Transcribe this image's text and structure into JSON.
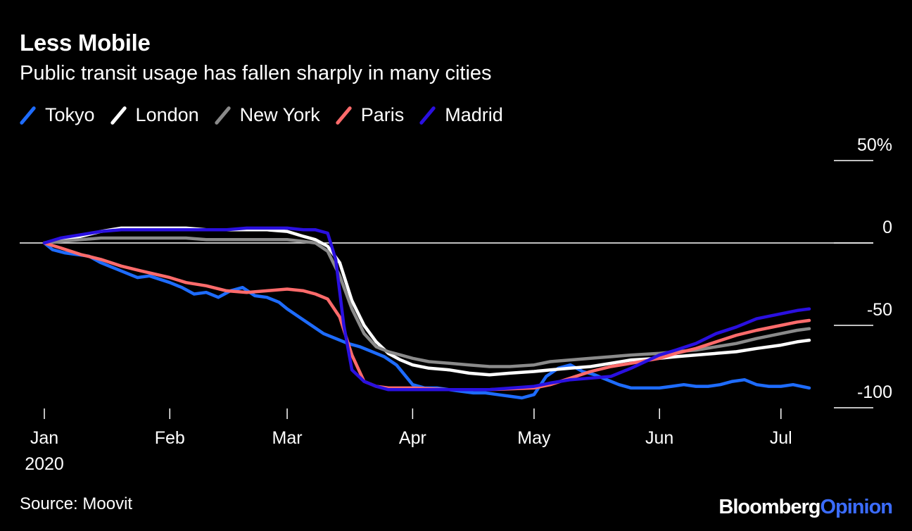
{
  "title": "Less Mobile",
  "subtitle": "Public transit usage has fallen sharply in many cities",
  "source": "Source: Moovit",
  "brand": {
    "bloomberg": "Bloomberg",
    "opinion": "Opinion"
  },
  "colors": {
    "background": "#000000",
    "Tokyo": "#1e6cff",
    "London": "#ffffff",
    "New York": "#8a8a8a",
    "Paris": "#ff6b6b",
    "Madrid": "#2a10e0"
  },
  "chart_data": {
    "type": "line",
    "title": "Less Mobile",
    "subtitle": "Public transit usage has fallen sharply in many cities",
    "ylim": [
      -100,
      50
    ],
    "yticks": [
      50,
      0,
      -50,
      -100
    ],
    "ytick_labels": [
      "50%",
      "0",
      "-50",
      "-100"
    ],
    "xlim": [
      "2020-01-01",
      "2020-07-08"
    ],
    "xticks": [
      {
        "date": "2020-01-01",
        "label": "Jan",
        "sublabel": "2020"
      },
      {
        "date": "2020-02-01",
        "label": "Feb"
      },
      {
        "date": "2020-03-01",
        "label": "Mar"
      },
      {
        "date": "2020-04-01",
        "label": "Apr"
      },
      {
        "date": "2020-05-01",
        "label": "May"
      },
      {
        "date": "2020-06-01",
        "label": "Jun"
      },
      {
        "date": "2020-07-01",
        "label": "Jul"
      }
    ],
    "legend_position": "top-left",
    "grid": false,
    "series": [
      {
        "name": "Tokyo",
        "color": "#1e6cff",
        "points": [
          [
            "2020-01-01",
            0
          ],
          [
            "2020-01-03",
            -4
          ],
          [
            "2020-01-06",
            -6
          ],
          [
            "2020-01-09",
            -7
          ],
          [
            "2020-01-12",
            -8
          ],
          [
            "2020-01-15",
            -12
          ],
          [
            "2020-01-18",
            -15
          ],
          [
            "2020-01-21",
            -18
          ],
          [
            "2020-01-24",
            -21
          ],
          [
            "2020-01-27",
            -20
          ],
          [
            "2020-02-01",
            -24
          ],
          [
            "2020-02-04",
            -27
          ],
          [
            "2020-02-07",
            -31
          ],
          [
            "2020-02-10",
            -30
          ],
          [
            "2020-02-13",
            -33
          ],
          [
            "2020-02-16",
            -29
          ],
          [
            "2020-02-19",
            -27
          ],
          [
            "2020-02-22",
            -32
          ],
          [
            "2020-02-25",
            -33
          ],
          [
            "2020-02-28",
            -36
          ],
          [
            "2020-03-01",
            -40
          ],
          [
            "2020-03-04",
            -45
          ],
          [
            "2020-03-07",
            -50
          ],
          [
            "2020-03-10",
            -55
          ],
          [
            "2020-03-13",
            -58
          ],
          [
            "2020-03-16",
            -61
          ],
          [
            "2020-03-19",
            -63
          ],
          [
            "2020-03-22",
            -66
          ],
          [
            "2020-03-25",
            -69
          ],
          [
            "2020-03-28",
            -74
          ],
          [
            "2020-04-01",
            -86
          ],
          [
            "2020-04-04",
            -88
          ],
          [
            "2020-04-07",
            -88
          ],
          [
            "2020-04-10",
            -89
          ],
          [
            "2020-04-13",
            -90
          ],
          [
            "2020-04-16",
            -91
          ],
          [
            "2020-04-19",
            -91
          ],
          [
            "2020-04-22",
            -92
          ],
          [
            "2020-04-25",
            -93
          ],
          [
            "2020-04-28",
            -94
          ],
          [
            "2020-05-01",
            -92
          ],
          [
            "2020-05-04",
            -81
          ],
          [
            "2020-05-07",
            -76
          ],
          [
            "2020-05-10",
            -74
          ],
          [
            "2020-05-13",
            -78
          ],
          [
            "2020-05-16",
            -80
          ],
          [
            "2020-05-19",
            -83
          ],
          [
            "2020-05-22",
            -86
          ],
          [
            "2020-05-25",
            -88
          ],
          [
            "2020-05-28",
            -88
          ],
          [
            "2020-06-01",
            -88
          ],
          [
            "2020-06-04",
            -87
          ],
          [
            "2020-06-07",
            -86
          ],
          [
            "2020-06-10",
            -87
          ],
          [
            "2020-06-13",
            -87
          ],
          [
            "2020-06-16",
            -86
          ],
          [
            "2020-06-19",
            -84
          ],
          [
            "2020-06-22",
            -83
          ],
          [
            "2020-06-25",
            -86
          ],
          [
            "2020-06-28",
            -87
          ],
          [
            "2020-07-01",
            -87
          ],
          [
            "2020-07-04",
            -86
          ],
          [
            "2020-07-08",
            -88
          ]
        ]
      },
      {
        "name": "London",
        "color": "#ffffff",
        "points": [
          [
            "2020-01-01",
            0
          ],
          [
            "2020-01-05",
            2
          ],
          [
            "2020-01-10",
            4
          ],
          [
            "2020-01-15",
            7
          ],
          [
            "2020-01-20",
            9
          ],
          [
            "2020-01-25",
            9
          ],
          [
            "2020-02-01",
            9
          ],
          [
            "2020-02-05",
            9
          ],
          [
            "2020-02-10",
            8
          ],
          [
            "2020-02-15",
            8
          ],
          [
            "2020-02-20",
            8
          ],
          [
            "2020-02-25",
            8
          ],
          [
            "2020-03-01",
            7
          ],
          [
            "2020-03-05",
            4
          ],
          [
            "2020-03-08",
            2
          ],
          [
            "2020-03-11",
            -2
          ],
          [
            "2020-03-14",
            -12
          ],
          [
            "2020-03-17",
            -35
          ],
          [
            "2020-03-20",
            -50
          ],
          [
            "2020-03-23",
            -60
          ],
          [
            "2020-03-26",
            -67
          ],
          [
            "2020-03-29",
            -71
          ],
          [
            "2020-04-01",
            -74
          ],
          [
            "2020-04-05",
            -76
          ],
          [
            "2020-04-10",
            -77
          ],
          [
            "2020-04-15",
            -79
          ],
          [
            "2020-04-20",
            -80
          ],
          [
            "2020-04-25",
            -79
          ],
          [
            "2020-05-01",
            -78
          ],
          [
            "2020-05-05",
            -77
          ],
          [
            "2020-05-10",
            -76
          ],
          [
            "2020-05-15",
            -75
          ],
          [
            "2020-05-20",
            -73
          ],
          [
            "2020-05-25",
            -71
          ],
          [
            "2020-06-01",
            -70
          ],
          [
            "2020-06-05",
            -69
          ],
          [
            "2020-06-10",
            -68
          ],
          [
            "2020-06-15",
            -67
          ],
          [
            "2020-06-20",
            -66
          ],
          [
            "2020-06-25",
            -64
          ],
          [
            "2020-07-01",
            -62
          ],
          [
            "2020-07-05",
            -60
          ],
          [
            "2020-07-08",
            -59
          ]
        ]
      },
      {
        "name": "New York",
        "color": "#8a8a8a",
        "points": [
          [
            "2020-01-01",
            0
          ],
          [
            "2020-01-05",
            1
          ],
          [
            "2020-01-10",
            2
          ],
          [
            "2020-01-15",
            3
          ],
          [
            "2020-01-20",
            3
          ],
          [
            "2020-01-25",
            3
          ],
          [
            "2020-02-01",
            3
          ],
          [
            "2020-02-05",
            3
          ],
          [
            "2020-02-10",
            2
          ],
          [
            "2020-02-15",
            2
          ],
          [
            "2020-02-20",
            2
          ],
          [
            "2020-02-25",
            2
          ],
          [
            "2020-03-01",
            2
          ],
          [
            "2020-03-05",
            1
          ],
          [
            "2020-03-08",
            0
          ],
          [
            "2020-03-11",
            -5
          ],
          [
            "2020-03-14",
            -20
          ],
          [
            "2020-03-17",
            -40
          ],
          [
            "2020-03-20",
            -55
          ],
          [
            "2020-03-23",
            -63
          ],
          [
            "2020-03-26",
            -66
          ],
          [
            "2020-03-29",
            -68
          ],
          [
            "2020-04-01",
            -70
          ],
          [
            "2020-04-05",
            -72
          ],
          [
            "2020-04-10",
            -73
          ],
          [
            "2020-04-15",
            -74
          ],
          [
            "2020-04-20",
            -75
          ],
          [
            "2020-04-25",
            -75
          ],
          [
            "2020-05-01",
            -74
          ],
          [
            "2020-05-05",
            -72
          ],
          [
            "2020-05-10",
            -71
          ],
          [
            "2020-05-15",
            -70
          ],
          [
            "2020-05-20",
            -69
          ],
          [
            "2020-05-25",
            -68
          ],
          [
            "2020-06-01",
            -67
          ],
          [
            "2020-06-05",
            -66
          ],
          [
            "2020-06-10",
            -65
          ],
          [
            "2020-06-15",
            -63
          ],
          [
            "2020-06-20",
            -61
          ],
          [
            "2020-06-25",
            -58
          ],
          [
            "2020-07-01",
            -55
          ],
          [
            "2020-07-05",
            -53
          ],
          [
            "2020-07-08",
            -52
          ]
        ]
      },
      {
        "name": "Paris",
        "color": "#ff6b6b",
        "points": [
          [
            "2020-01-01",
            0
          ],
          [
            "2020-01-05",
            -3
          ],
          [
            "2020-01-10",
            -7
          ],
          [
            "2020-01-15",
            -10
          ],
          [
            "2020-01-20",
            -14
          ],
          [
            "2020-01-25",
            -17
          ],
          [
            "2020-02-01",
            -21
          ],
          [
            "2020-02-05",
            -24
          ],
          [
            "2020-02-10",
            -26
          ],
          [
            "2020-02-15",
            -29
          ],
          [
            "2020-02-20",
            -30
          ],
          [
            "2020-02-25",
            -29
          ],
          [
            "2020-03-01",
            -28
          ],
          [
            "2020-03-05",
            -29
          ],
          [
            "2020-03-08",
            -31
          ],
          [
            "2020-03-11",
            -34
          ],
          [
            "2020-03-14",
            -45
          ],
          [
            "2020-03-17",
            -68
          ],
          [
            "2020-03-20",
            -84
          ],
          [
            "2020-03-23",
            -87
          ],
          [
            "2020-03-26",
            -88
          ],
          [
            "2020-04-01",
            -88
          ],
          [
            "2020-04-10",
            -89
          ],
          [
            "2020-04-20",
            -89
          ],
          [
            "2020-05-01",
            -88
          ],
          [
            "2020-05-05",
            -86
          ],
          [
            "2020-05-10",
            -82
          ],
          [
            "2020-05-15",
            -78
          ],
          [
            "2020-05-20",
            -75
          ],
          [
            "2020-05-25",
            -73
          ],
          [
            "2020-06-01",
            -70
          ],
          [
            "2020-06-05",
            -67
          ],
          [
            "2020-06-10",
            -64
          ],
          [
            "2020-06-15",
            -60
          ],
          [
            "2020-06-20",
            -56
          ],
          [
            "2020-06-25",
            -53
          ],
          [
            "2020-07-01",
            -50
          ],
          [
            "2020-07-05",
            -48
          ],
          [
            "2020-07-08",
            -47
          ]
        ]
      },
      {
        "name": "Madrid",
        "color": "#2a10e0",
        "points": [
          [
            "2020-01-01",
            0
          ],
          [
            "2020-01-05",
            3
          ],
          [
            "2020-01-10",
            5
          ],
          [
            "2020-01-15",
            7
          ],
          [
            "2020-01-20",
            8
          ],
          [
            "2020-01-25",
            8
          ],
          [
            "2020-02-01",
            8
          ],
          [
            "2020-02-05",
            8
          ],
          [
            "2020-02-10",
            8
          ],
          [
            "2020-02-15",
            8
          ],
          [
            "2020-02-20",
            9
          ],
          [
            "2020-02-25",
            9
          ],
          [
            "2020-03-01",
            9
          ],
          [
            "2020-03-05",
            8
          ],
          [
            "2020-03-08",
            8
          ],
          [
            "2020-03-11",
            6
          ],
          [
            "2020-03-13",
            -10
          ],
          [
            "2020-03-15",
            -50
          ],
          [
            "2020-03-17",
            -77
          ],
          [
            "2020-03-20",
            -84
          ],
          [
            "2020-03-23",
            -87
          ],
          [
            "2020-03-26",
            -89
          ],
          [
            "2020-04-01",
            -89
          ],
          [
            "2020-04-10",
            -89
          ],
          [
            "2020-04-20",
            -89
          ],
          [
            "2020-05-01",
            -87
          ],
          [
            "2020-05-05",
            -85
          ],
          [
            "2020-05-10",
            -83
          ],
          [
            "2020-05-15",
            -82
          ],
          [
            "2020-05-20",
            -81
          ],
          [
            "2020-05-25",
            -76
          ],
          [
            "2020-06-01",
            -68
          ],
          [
            "2020-06-05",
            -65
          ],
          [
            "2020-06-10",
            -61
          ],
          [
            "2020-06-15",
            -55
          ],
          [
            "2020-06-20",
            -51
          ],
          [
            "2020-06-25",
            -46
          ],
          [
            "2020-07-01",
            -43
          ],
          [
            "2020-07-05",
            -41
          ],
          [
            "2020-07-08",
            -40
          ]
        ]
      }
    ]
  }
}
